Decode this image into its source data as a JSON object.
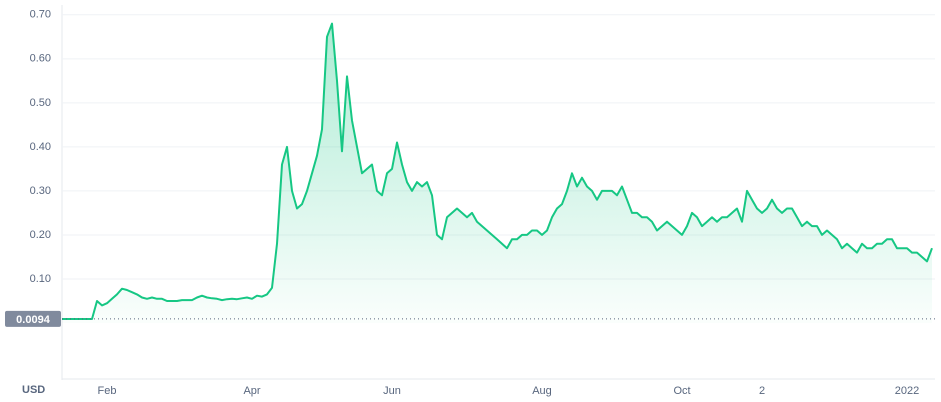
{
  "chart_data": {
    "type": "area",
    "color": "#16c784",
    "currency": "USD",
    "reference_value": 0.0094,
    "categories": [
      null,
      null,
      null,
      null,
      null,
      null,
      null,
      null,
      null,
      "Feb",
      null,
      null,
      null,
      null,
      null,
      null,
      null,
      null,
      null,
      null,
      null,
      null,
      null,
      null,
      null,
      null,
      null,
      null,
      null,
      null,
      null,
      null,
      null,
      null,
      null,
      null,
      null,
      null,
      "Apr",
      null,
      null,
      null,
      null,
      null,
      null,
      null,
      null,
      null,
      null,
      null,
      null,
      null,
      null,
      null,
      null,
      null,
      null,
      null,
      null,
      null,
      null,
      null,
      null,
      null,
      null,
      null,
      "Jun",
      null,
      null,
      null,
      null,
      null,
      null,
      null,
      null,
      null,
      null,
      null,
      null,
      null,
      null,
      null,
      null,
      null,
      null,
      null,
      null,
      null,
      null,
      null,
      null,
      null,
      null,
      null,
      null,
      null,
      "Aug",
      null,
      null,
      null,
      null,
      null,
      null,
      null,
      null,
      null,
      null,
      null,
      null,
      null,
      null,
      null,
      null,
      null,
      null,
      null,
      null,
      null,
      null,
      null,
      null,
      null,
      null,
      null,
      "Oct",
      null,
      null,
      null,
      null,
      null,
      null,
      null,
      null,
      null,
      null,
      null,
      null,
      null,
      null,
      null,
      "2",
      null,
      null,
      null,
      null,
      null,
      null,
      null,
      null,
      null,
      null,
      null,
      null,
      null,
      null,
      null,
      null,
      null,
      null,
      null,
      null,
      null,
      null,
      null,
      null,
      null,
      null,
      null,
      null,
      "2022",
      null,
      null,
      null,
      null,
      null
    ],
    "values": [
      0.009,
      0.009,
      0.009,
      0.009,
      0.009,
      0.009,
      0.009,
      0.05,
      0.04,
      0.045,
      0.055,
      0.065,
      0.078,
      0.075,
      0.07,
      0.065,
      0.058,
      0.055,
      0.058,
      0.055,
      0.055,
      0.05,
      0.05,
      0.05,
      0.052,
      0.052,
      0.052,
      0.058,
      0.062,
      0.058,
      0.056,
      0.055,
      0.052,
      0.054,
      0.055,
      0.054,
      0.056,
      0.058,
      0.055,
      0.062,
      0.06,
      0.065,
      0.08,
      0.18,
      0.36,
      0.4,
      0.3,
      0.26,
      0.27,
      0.3,
      0.34,
      0.38,
      0.44,
      0.65,
      0.68,
      0.55,
      0.39,
      0.56,
      0.46,
      0.4,
      0.34,
      0.35,
      0.36,
      0.3,
      0.29,
      0.34,
      0.35,
      0.41,
      0.36,
      0.32,
      0.3,
      0.32,
      0.31,
      0.32,
      0.29,
      0.2,
      0.19,
      0.24,
      0.25,
      0.26,
      0.25,
      0.24,
      0.25,
      0.23,
      0.22,
      0.21,
      0.2,
      0.19,
      0.18,
      0.17,
      0.19,
      0.19,
      0.2,
      0.2,
      0.21,
      0.21,
      0.2,
      0.21,
      0.24,
      0.26,
      0.27,
      0.3,
      0.34,
      0.31,
      0.33,
      0.31,
      0.3,
      0.28,
      0.3,
      0.3,
      0.3,
      0.29,
      0.31,
      0.28,
      0.25,
      0.25,
      0.24,
      0.24,
      0.23,
      0.21,
      0.22,
      0.23,
      0.22,
      0.21,
      0.2,
      0.22,
      0.25,
      0.24,
      0.22,
      0.23,
      0.24,
      0.23,
      0.24,
      0.24,
      0.25,
      0.26,
      0.23,
      0.3,
      0.28,
      0.26,
      0.25,
      0.26,
      0.28,
      0.26,
      0.25,
      0.26,
      0.26,
      0.24,
      0.22,
      0.23,
      0.22,
      0.22,
      0.2,
      0.21,
      0.2,
      0.19,
      0.17,
      0.18,
      0.17,
      0.16,
      0.18,
      0.17,
      0.17,
      0.18,
      0.18,
      0.19,
      0.19,
      0.17,
      0.17,
      0.17,
      0.16,
      0.16,
      0.15,
      0.14,
      0.17
    ],
    "ylim": [
      0,
      0.72
    ],
    "yticks": [
      {
        "value": 0.1,
        "label": "0.10"
      },
      {
        "value": 0.2,
        "label": "0.20"
      },
      {
        "value": 0.3,
        "label": "0.30"
      },
      {
        "value": 0.4,
        "label": "0.40"
      },
      {
        "value": 0.5,
        "label": "0.50"
      },
      {
        "value": 0.6,
        "label": "0.60"
      },
      {
        "value": 0.7,
        "label": "0.70"
      }
    ],
    "grid": true
  }
}
